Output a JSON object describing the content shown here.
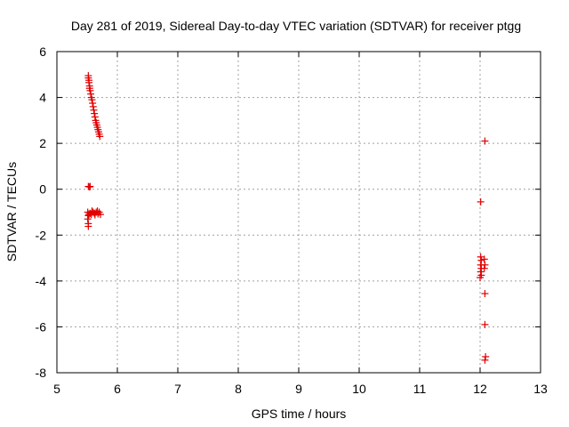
{
  "chart_data": {
    "type": "scatter",
    "title": "Day 281 of 2019, Sidereal Day-to-day VTEC variation (SDTVAR) for receiver ptgg",
    "xlabel": "GPS time / hours",
    "ylabel": "SDTVAR / TECUs",
    "xlim": [
      5,
      13
    ],
    "ylim": [
      -8,
      6
    ],
    "x_ticks": [
      "5",
      "6",
      "7",
      "8",
      "9",
      "10",
      "11",
      "12",
      "13"
    ],
    "y_ticks": [
      "6",
      "4",
      "2",
      "0",
      "-2",
      "-4",
      "-6",
      "-8"
    ],
    "grid": true,
    "marker": "plus",
    "color": "#e00000",
    "series": [
      {
        "points": [
          [
            5.52,
            4.95
          ],
          [
            5.52,
            4.85
          ],
          [
            5.53,
            4.75
          ],
          [
            5.53,
            4.65
          ],
          [
            5.54,
            4.5
          ],
          [
            5.54,
            4.4
          ],
          [
            5.55,
            4.3
          ],
          [
            5.56,
            4.15
          ],
          [
            5.57,
            4.0
          ],
          [
            5.58,
            3.9
          ],
          [
            5.59,
            3.75
          ],
          [
            5.6,
            3.6
          ],
          [
            5.61,
            3.45
          ],
          [
            5.62,
            3.3
          ],
          [
            5.63,
            3.15
          ],
          [
            5.64,
            3.0
          ],
          [
            5.65,
            2.9
          ],
          [
            5.66,
            2.8
          ],
          [
            5.67,
            2.7
          ],
          [
            5.68,
            2.6
          ],
          [
            5.69,
            2.5
          ],
          [
            5.7,
            2.4
          ],
          [
            5.71,
            2.3
          ],
          [
            5.52,
            0.12
          ],
          [
            5.54,
            0.1
          ],
          [
            5.55,
            0.12
          ],
          [
            5.51,
            -1.0
          ],
          [
            5.52,
            -1.15
          ],
          [
            5.53,
            -1.1
          ],
          [
            5.55,
            -1.05
          ],
          [
            5.57,
            -1.1
          ],
          [
            5.58,
            -0.95
          ],
          [
            5.6,
            -1.0
          ],
          [
            5.62,
            -1.05
          ],
          [
            5.63,
            -1.12
          ],
          [
            5.65,
            -1.0
          ],
          [
            5.67,
            -0.95
          ],
          [
            5.68,
            -1.08
          ],
          [
            5.7,
            -1.0
          ],
          [
            5.72,
            -1.1
          ],
          [
            5.51,
            -1.3
          ],
          [
            5.52,
            -1.5
          ],
          [
            5.52,
            -1.62
          ],
          [
            12.01,
            -0.55
          ],
          [
            12.08,
            2.1
          ],
          [
            12.01,
            -2.95
          ],
          [
            12.02,
            -3.1
          ],
          [
            12.01,
            -3.3
          ],
          [
            12.02,
            -3.45
          ],
          [
            12.01,
            -3.6
          ],
          [
            12.02,
            -3.75
          ],
          [
            12.0,
            -3.85
          ],
          [
            12.07,
            -3.05
          ],
          [
            12.08,
            -3.3
          ],
          [
            12.07,
            -3.45
          ],
          [
            12.08,
            -4.55
          ],
          [
            12.08,
            -5.9
          ],
          [
            12.09,
            -7.3
          ],
          [
            12.08,
            -7.45
          ]
        ]
      }
    ]
  }
}
